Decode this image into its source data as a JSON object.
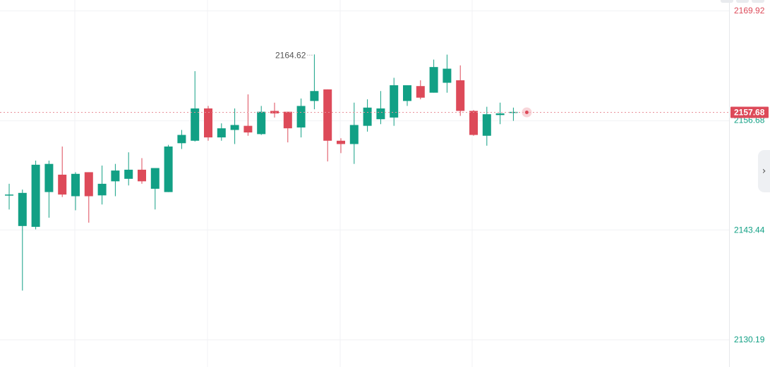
{
  "chart_data": {
    "type": "candlestick",
    "y_axis": {
      "ticks": [
        "2169.92",
        "2156.68",
        "2143.44",
        "2130.19"
      ],
      "range": [
        2126.2,
        2171.85
      ],
      "position": "right"
    },
    "last_price": "2157.68",
    "max_annotation": "2164.62",
    "grid": true,
    "colors": {
      "up": "#12a085",
      "down": "#dd4a59",
      "last_price": "#dd4a59",
      "grid": "#f1f2f4",
      "axis_text_up": "#12a085"
    },
    "candles": [
      {
        "o": 2147.7,
        "h": 2149.0,
        "l": 2145.9,
        "c": 2147.7
      },
      {
        "o": 2143.9,
        "h": 2148.3,
        "l": 2136.1,
        "c": 2147.9
      },
      {
        "o": 2143.8,
        "h": 2151.8,
        "l": 2143.5,
        "c": 2151.3
      },
      {
        "o": 2148.0,
        "h": 2151.8,
        "l": 2144.9,
        "c": 2151.4
      },
      {
        "o": 2150.1,
        "h": 2153.5,
        "l": 2147.4,
        "c": 2147.7
      },
      {
        "o": 2147.5,
        "h": 2150.4,
        "l": 2145.8,
        "c": 2150.2
      },
      {
        "o": 2150.4,
        "h": 2150.4,
        "l": 2144.3,
        "c": 2147.5
      },
      {
        "o": 2147.6,
        "h": 2151.2,
        "l": 2146.5,
        "c": 2149.0
      },
      {
        "o": 2149.3,
        "h": 2151.4,
        "l": 2147.5,
        "c": 2150.6
      },
      {
        "o": 2149.6,
        "h": 2152.8,
        "l": 2148.8,
        "c": 2150.7
      },
      {
        "o": 2150.7,
        "h": 2152.1,
        "l": 2149.0,
        "c": 2149.3
      },
      {
        "o": 2148.4,
        "h": 2150.8,
        "l": 2145.9,
        "c": 2150.9
      },
      {
        "o": 2148.0,
        "h": 2153.7,
        "l": 2148.0,
        "c": 2153.5
      },
      {
        "o": 2153.9,
        "h": 2155.5,
        "l": 2153.2,
        "c": 2154.9
      },
      {
        "o": 2154.2,
        "h": 2162.6,
        "l": 2154.1,
        "c": 2158.1
      },
      {
        "o": 2158.1,
        "h": 2158.4,
        "l": 2154.2,
        "c": 2154.6
      },
      {
        "o": 2154.6,
        "h": 2156.3,
        "l": 2154.2,
        "c": 2155.7
      },
      {
        "o": 2155.5,
        "h": 2158.1,
        "l": 2153.8,
        "c": 2156.1
      },
      {
        "o": 2156.0,
        "h": 2159.8,
        "l": 2154.8,
        "c": 2155.2
      },
      {
        "o": 2155.0,
        "h": 2158.4,
        "l": 2154.9,
        "c": 2157.7
      },
      {
        "o": 2157.8,
        "h": 2158.8,
        "l": 2157.0,
        "c": 2157.5
      },
      {
        "o": 2157.7,
        "h": 2157.7,
        "l": 2154.0,
        "c": 2155.7
      },
      {
        "o": 2155.8,
        "h": 2159.3,
        "l": 2154.6,
        "c": 2158.4
      },
      {
        "o": 2159.0,
        "h": 2164.62,
        "l": 2158.0,
        "c": 2160.2
      },
      {
        "o": 2160.4,
        "h": 2160.4,
        "l": 2151.7,
        "c": 2154.2
      },
      {
        "o": 2154.2,
        "h": 2154.5,
        "l": 2152.7,
        "c": 2153.8
      },
      {
        "o": 2153.8,
        "h": 2158.8,
        "l": 2151.4,
        "c": 2156.1
      },
      {
        "o": 2156.0,
        "h": 2159.2,
        "l": 2155.3,
        "c": 2158.2
      },
      {
        "o": 2156.8,
        "h": 2160.2,
        "l": 2156.2,
        "c": 2158.1
      },
      {
        "o": 2157.0,
        "h": 2161.8,
        "l": 2156.0,
        "c": 2160.9
      },
      {
        "o": 2159.0,
        "h": 2160.9,
        "l": 2158.4,
        "c": 2160.9
      },
      {
        "o": 2160.8,
        "h": 2161.5,
        "l": 2159.2,
        "c": 2159.4
      },
      {
        "o": 2160.0,
        "h": 2164.0,
        "l": 2160.0,
        "c": 2163.1
      },
      {
        "o": 2161.2,
        "h": 2164.6,
        "l": 2160.0,
        "c": 2162.9
      },
      {
        "o": 2161.5,
        "h": 2163.3,
        "l": 2157.2,
        "c": 2157.8
      },
      {
        "o": 2157.8,
        "h": 2157.9,
        "l": 2154.8,
        "c": 2154.9
      },
      {
        "o": 2154.8,
        "h": 2158.3,
        "l": 2153.6,
        "c": 2157.4
      },
      {
        "o": 2157.3,
        "h": 2158.8,
        "l": 2156.2,
        "c": 2157.5
      },
      {
        "o": 2157.6,
        "h": 2158.2,
        "l": 2156.6,
        "c": 2157.68
      }
    ]
  }
}
